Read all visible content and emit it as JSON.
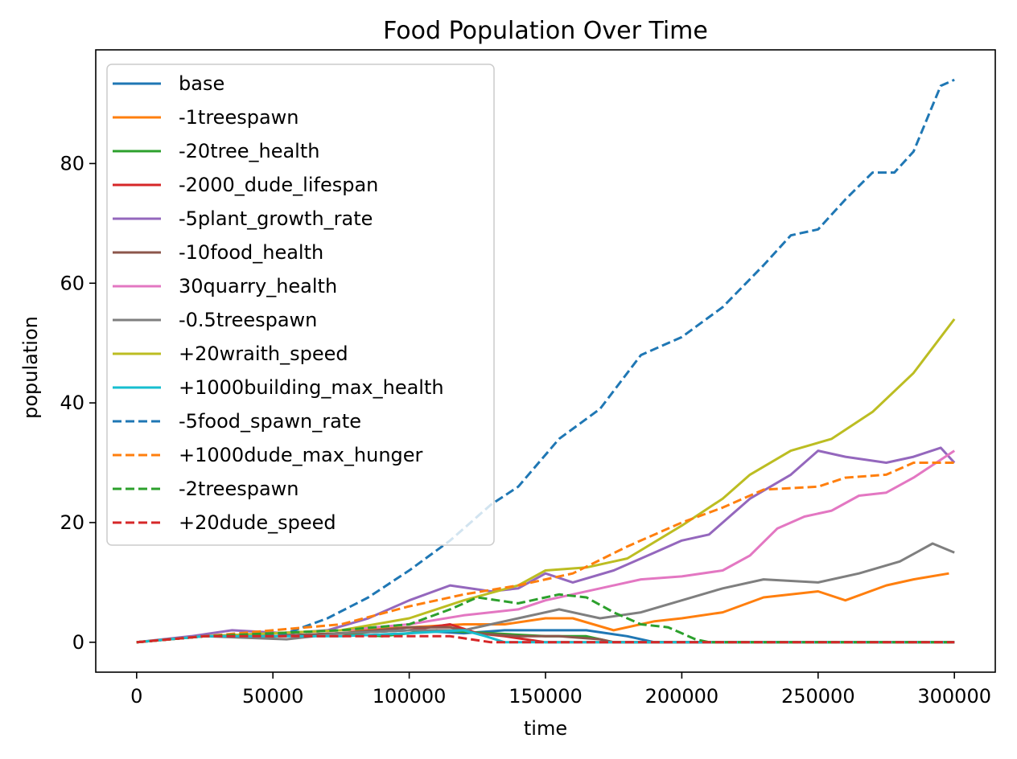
{
  "chart_data": {
    "type": "line",
    "title": "Food Population Over Time",
    "xlabel": "time",
    "ylabel": "population",
    "xlim": [
      -15000,
      315000
    ],
    "ylim": [
      -5,
      99
    ],
    "xticks": [
      0,
      50000,
      100000,
      150000,
      200000,
      250000,
      300000
    ],
    "xtick_labels": [
      "0",
      "50000",
      "100000",
      "150000",
      "200000",
      "250000",
      "300000"
    ],
    "yticks": [
      0,
      20,
      40,
      60,
      80
    ],
    "ytick_labels": [
      "0",
      "20",
      "40",
      "60",
      "80"
    ],
    "grid": false,
    "legend_position": "top-left",
    "series": [
      {
        "name": "base",
        "color": "#1f77b4",
        "dash": "solid",
        "points": [
          [
            0,
            0
          ],
          [
            25000,
            1
          ],
          [
            50000,
            1
          ],
          [
            75000,
            1.5
          ],
          [
            100000,
            2
          ],
          [
            120000,
            1.5
          ],
          [
            135000,
            2
          ],
          [
            150000,
            2
          ],
          [
            165000,
            2
          ],
          [
            180000,
            1
          ],
          [
            190000,
            0
          ],
          [
            300000,
            0
          ]
        ]
      },
      {
        "name": "-1treespawn",
        "color": "#ff7f0e",
        "dash": "solid",
        "points": [
          [
            0,
            0
          ],
          [
            25000,
            1
          ],
          [
            50000,
            1.5
          ],
          [
            75000,
            2
          ],
          [
            100000,
            2.5
          ],
          [
            120000,
            3
          ],
          [
            135000,
            3
          ],
          [
            150000,
            4
          ],
          [
            160000,
            4
          ],
          [
            175000,
            2
          ],
          [
            190000,
            3.5
          ],
          [
            200000,
            4
          ],
          [
            215000,
            5
          ],
          [
            230000,
            7.5
          ],
          [
            250000,
            8.5
          ],
          [
            260000,
            7
          ],
          [
            275000,
            9.5
          ],
          [
            285000,
            10.5
          ],
          [
            298000,
            11.5
          ]
        ]
      },
      {
        "name": "-20tree_health",
        "color": "#2ca02c",
        "dash": "solid",
        "points": [
          [
            0,
            0
          ],
          [
            25000,
            1
          ],
          [
            50000,
            1
          ],
          [
            75000,
            1.5
          ],
          [
            90000,
            1
          ],
          [
            110000,
            2
          ],
          [
            130000,
            1.5
          ],
          [
            150000,
            1
          ],
          [
            165000,
            1
          ],
          [
            175000,
            0
          ],
          [
            300000,
            0
          ]
        ]
      },
      {
        "name": "-2000_dude_lifespan",
        "color": "#d62728",
        "dash": "solid",
        "points": [
          [
            0,
            0
          ],
          [
            25000,
            1
          ],
          [
            50000,
            1
          ],
          [
            75000,
            1.5
          ],
          [
            100000,
            2
          ],
          [
            115000,
            3
          ],
          [
            125000,
            1.5
          ],
          [
            135000,
            1
          ],
          [
            150000,
            0
          ],
          [
            300000,
            0
          ]
        ]
      },
      {
        "name": "-5plant_growth_rate",
        "color": "#9467bd",
        "dash": "solid",
        "points": [
          [
            0,
            0
          ],
          [
            20000,
            1
          ],
          [
            35000,
            2
          ],
          [
            55000,
            1.5
          ],
          [
            70000,
            2
          ],
          [
            85000,
            4
          ],
          [
            100000,
            7
          ],
          [
            115000,
            9.5
          ],
          [
            130000,
            8.5
          ],
          [
            140000,
            9
          ],
          [
            150000,
            11.5
          ],
          [
            160000,
            10
          ],
          [
            175000,
            12
          ],
          [
            190000,
            15
          ],
          [
            200000,
            17
          ],
          [
            210000,
            18
          ],
          [
            225000,
            24
          ],
          [
            240000,
            28
          ],
          [
            250000,
            32
          ],
          [
            260000,
            31
          ],
          [
            275000,
            30
          ],
          [
            285000,
            31
          ],
          [
            295000,
            32.5
          ],
          [
            300000,
            30
          ]
        ]
      },
      {
        "name": "-10food_health",
        "color": "#8c564b",
        "dash": "solid",
        "points": [
          [
            0,
            0
          ],
          [
            25000,
            1
          ],
          [
            50000,
            1
          ],
          [
            75000,
            1.5
          ],
          [
            100000,
            2.5
          ],
          [
            115000,
            2.5
          ],
          [
            125000,
            1.5
          ],
          [
            140000,
            1
          ],
          [
            155000,
            1
          ],
          [
            170000,
            0.5
          ],
          [
            175000,
            0
          ],
          [
            300000,
            0
          ]
        ]
      },
      {
        "name": "30quarry_health",
        "color": "#e377c2",
        "dash": "solid",
        "points": [
          [
            0,
            0
          ],
          [
            25000,
            1
          ],
          [
            50000,
            1.5
          ],
          [
            75000,
            2
          ],
          [
            100000,
            3
          ],
          [
            120000,
            4.5
          ],
          [
            140000,
            5.5
          ],
          [
            150000,
            7
          ],
          [
            170000,
            9
          ],
          [
            185000,
            10.5
          ],
          [
            200000,
            11
          ],
          [
            215000,
            12
          ],
          [
            225000,
            14.5
          ],
          [
            235000,
            19
          ],
          [
            245000,
            21
          ],
          [
            255000,
            22
          ],
          [
            265000,
            24.5
          ],
          [
            275000,
            25
          ],
          [
            285000,
            27.5
          ],
          [
            300000,
            32
          ]
        ]
      },
      {
        "name": "-0.5treespawn",
        "color": "#7f7f7f",
        "dash": "solid",
        "points": [
          [
            0,
            0
          ],
          [
            25000,
            1
          ],
          [
            55000,
            0.5
          ],
          [
            75000,
            1.5
          ],
          [
            100000,
            2
          ],
          [
            120000,
            2
          ],
          [
            140000,
            4
          ],
          [
            155000,
            5.5
          ],
          [
            170000,
            4
          ],
          [
            185000,
            5
          ],
          [
            200000,
            7
          ],
          [
            215000,
            9
          ],
          [
            230000,
            10.5
          ],
          [
            250000,
            10
          ],
          [
            265000,
            11.5
          ],
          [
            280000,
            13.5
          ],
          [
            292000,
            16.5
          ],
          [
            300000,
            15
          ]
        ]
      },
      {
        "name": "+20wraith_speed",
        "color": "#bcbd22",
        "dash": "solid",
        "points": [
          [
            0,
            0
          ],
          [
            25000,
            1
          ],
          [
            50000,
            1.5
          ],
          [
            75000,
            2
          ],
          [
            100000,
            4
          ],
          [
            120000,
            7
          ],
          [
            140000,
            9.5
          ],
          [
            150000,
            12
          ],
          [
            165000,
            12.5
          ],
          [
            180000,
            14
          ],
          [
            200000,
            19.5
          ],
          [
            215000,
            24
          ],
          [
            225000,
            28
          ],
          [
            240000,
            32
          ],
          [
            255000,
            34
          ],
          [
            270000,
            38.5
          ],
          [
            285000,
            45
          ],
          [
            300000,
            54
          ]
        ]
      },
      {
        "name": "+1000building_max_health",
        "color": "#17becf",
        "dash": "solid",
        "points": [
          [
            0,
            0
          ],
          [
            25000,
            1
          ],
          [
            50000,
            1
          ],
          [
            75000,
            1
          ],
          [
            100000,
            1.5
          ],
          [
            120000,
            2
          ],
          [
            128000,
            1
          ],
          [
            135000,
            0
          ],
          [
            300000,
            0
          ]
        ]
      },
      {
        "name": "-5food_spawn_rate",
        "color": "#1f77b4",
        "dash": "dashed",
        "points": [
          [
            0,
            0
          ],
          [
            25000,
            1
          ],
          [
            55000,
            1.5
          ],
          [
            70000,
            4
          ],
          [
            85000,
            7.5
          ],
          [
            100000,
            12
          ],
          [
            115000,
            17
          ],
          [
            130000,
            23
          ],
          [
            140000,
            26
          ],
          [
            155000,
            34
          ],
          [
            170000,
            39
          ],
          [
            185000,
            48
          ],
          [
            200000,
            51
          ],
          [
            215000,
            56
          ],
          [
            230000,
            63
          ],
          [
            240000,
            68
          ],
          [
            250000,
            69
          ],
          [
            260000,
            74
          ],
          [
            270000,
            78.5
          ],
          [
            278000,
            78.5
          ],
          [
            285000,
            82
          ],
          [
            295000,
            93
          ],
          [
            300000,
            94
          ]
        ]
      },
      {
        "name": "+1000dude_max_hunger",
        "color": "#ff7f0e",
        "dash": "dashed",
        "points": [
          [
            0,
            0
          ],
          [
            25000,
            1
          ],
          [
            50000,
            2
          ],
          [
            75000,
            3
          ],
          [
            100000,
            6
          ],
          [
            120000,
            8
          ],
          [
            140000,
            9.5
          ],
          [
            160000,
            11.5
          ],
          [
            180000,
            16
          ],
          [
            200000,
            20
          ],
          [
            215000,
            22.5
          ],
          [
            230000,
            25.5
          ],
          [
            250000,
            26
          ],
          [
            260000,
            27.5
          ],
          [
            275000,
            28
          ],
          [
            285000,
            30
          ],
          [
            300000,
            30
          ]
        ]
      },
      {
        "name": "-2treespawn",
        "color": "#2ca02c",
        "dash": "dashed",
        "points": [
          [
            0,
            0
          ],
          [
            25000,
            1
          ],
          [
            50000,
            1.5
          ],
          [
            75000,
            2
          ],
          [
            100000,
            3
          ],
          [
            115000,
            5.5
          ],
          [
            125000,
            7.5
          ],
          [
            140000,
            6.5
          ],
          [
            155000,
            8
          ],
          [
            165000,
            7.5
          ],
          [
            175000,
            5
          ],
          [
            185000,
            3
          ],
          [
            195000,
            2.5
          ],
          [
            205000,
            0.5
          ],
          [
            210000,
            0
          ],
          [
            300000,
            0
          ]
        ]
      },
      {
        "name": "+20dude_speed",
        "color": "#d62728",
        "dash": "dashed",
        "points": [
          [
            0,
            0
          ],
          [
            25000,
            1
          ],
          [
            50000,
            1
          ],
          [
            75000,
            1
          ],
          [
            100000,
            1
          ],
          [
            115000,
            1
          ],
          [
            130000,
            0
          ],
          [
            300000,
            0
          ]
        ]
      }
    ]
  }
}
